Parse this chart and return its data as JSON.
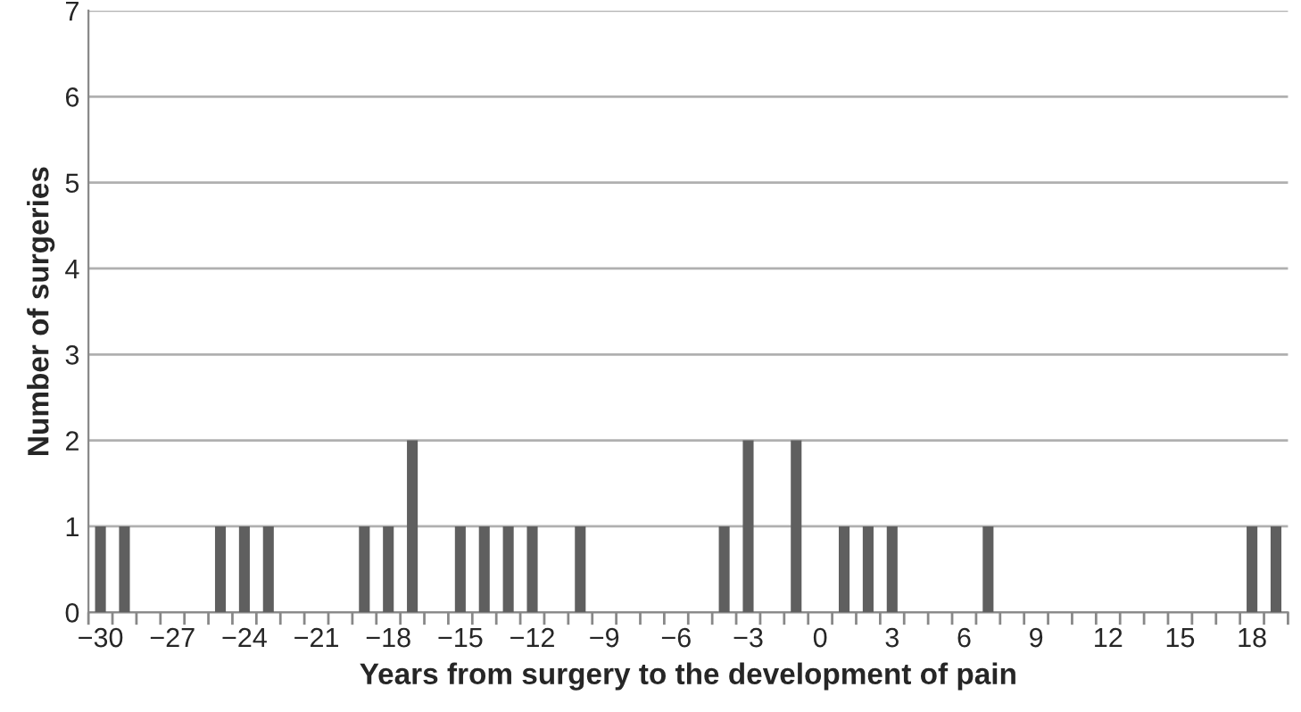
{
  "chart_data": {
    "type": "bar",
    "xlabel": "Years from surgery to the development of pain",
    "ylabel": "Number of surgeries",
    "categories": [
      "−30",
      null,
      null,
      "−27",
      null,
      null,
      "−24",
      null,
      null,
      "−21",
      null,
      null,
      "−18",
      null,
      null,
      "−15",
      null,
      null,
      "−12",
      null,
      null,
      "−9",
      null,
      null,
      "−6",
      null,
      null,
      "−3",
      null,
      null,
      "0",
      null,
      null,
      "3",
      null,
      null,
      "6",
      null,
      null,
      "9",
      null,
      null,
      "12",
      null,
      null,
      "15",
      null,
      null,
      "18",
      null
    ],
    "values": [
      1,
      1,
      0,
      0,
      0,
      1,
      1,
      1,
      0,
      0,
      0,
      1,
      1,
      2,
      0,
      1,
      1,
      1,
      1,
      0,
      1,
      0,
      0,
      0,
      0,
      0,
      1,
      2,
      0,
      2,
      0,
      1,
      1,
      1,
      0,
      0,
      0,
      1,
      0,
      0,
      0,
      0,
      0,
      0,
      0,
      0,
      0,
      0,
      1,
      1
    ],
    "color": "#5f5f5f",
    "ylim": [
      0,
      7
    ],
    "yticks": [
      0,
      1,
      2,
      3,
      4,
      5,
      6,
      7
    ],
    "grid": "y"
  }
}
